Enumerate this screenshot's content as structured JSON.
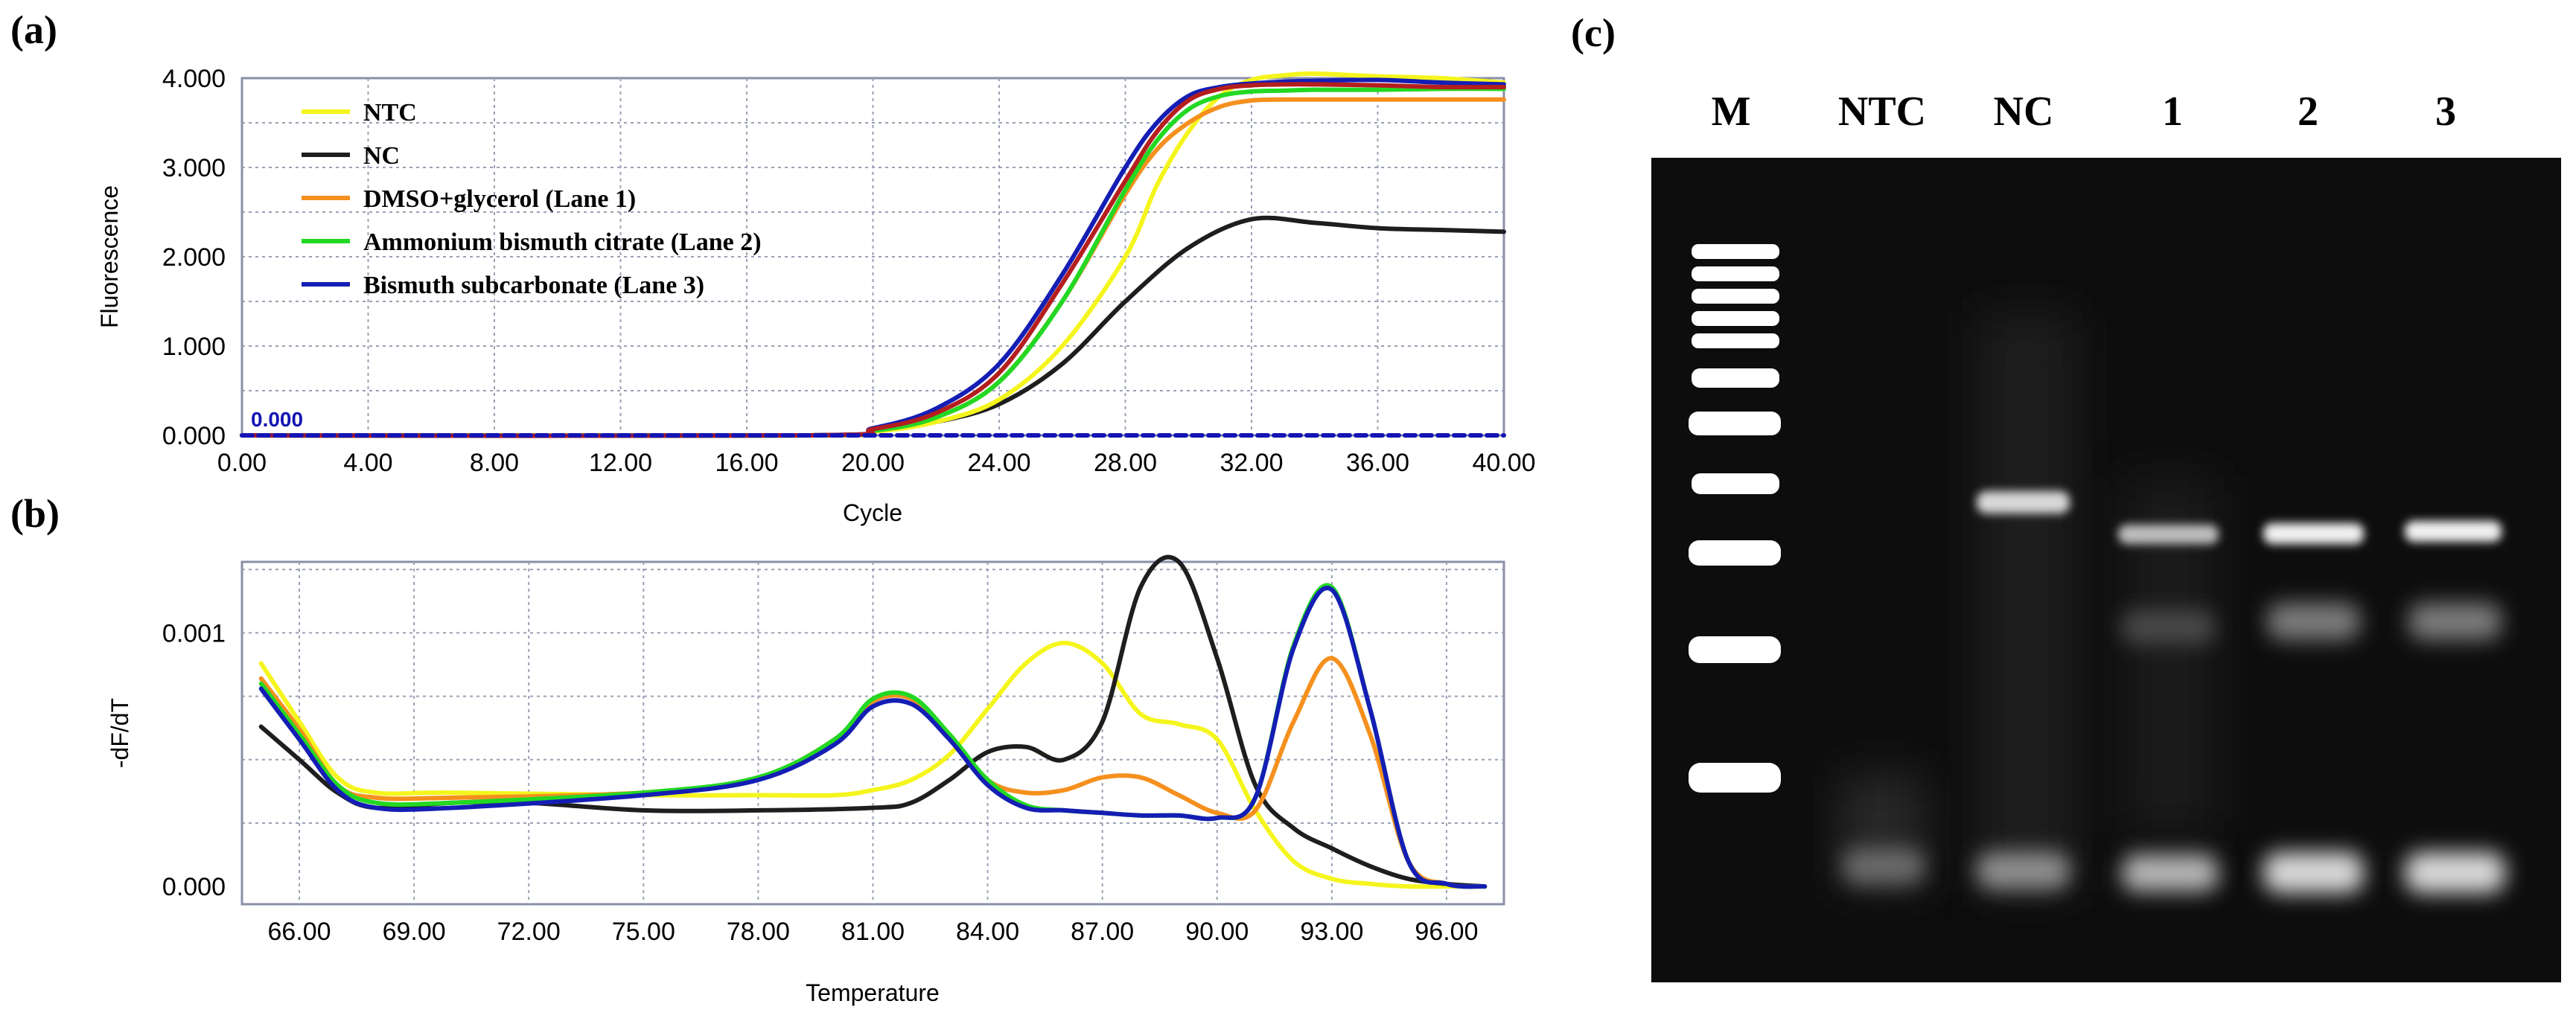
{
  "panel_labels": {
    "a": "(a)",
    "b": "(b)",
    "c": "(c)"
  },
  "colors": {
    "ntc": "#f5f51e",
    "nc": "#1e1e1e",
    "lane1": "#f5901e",
    "lane2": "#23d823",
    "lane3": "#141eb4",
    "lane_extra": "#b41e1e",
    "baseline": "#1414b4"
  },
  "chart_data": [
    {
      "id": "amplification",
      "type": "line",
      "title": "",
      "xlabel": "Cycle",
      "ylabel": "Fluorescence",
      "xlim": [
        0,
        40
      ],
      "ylim": [
        0,
        4
      ],
      "xticks": [
        "0.00",
        "4.00",
        "8.00",
        "12.00",
        "16.00",
        "20.00",
        "24.00",
        "28.00",
        "32.00",
        "36.00",
        "40.00"
      ],
      "yticks": [
        "0.000",
        "1.000",
        "2.000",
        "3.000",
        "4.000"
      ],
      "baseline_label": "0.000",
      "legend": [
        {
          "key": "ntc",
          "label": "NTC"
        },
        {
          "key": "nc",
          "label": "NC"
        },
        {
          "key": "lane1",
          "label": "DMSO+glycerol (Lane 1)"
        },
        {
          "key": "lane2",
          "label": "Ammonium bismuth citrate (Lane 2)"
        },
        {
          "key": "lane3",
          "label": "Bismuth subcarbonate (Lane 3)"
        }
      ],
      "series": [
        {
          "name": "NC",
          "key": "nc",
          "x": [
            0,
            18,
            20,
            22,
            24,
            26,
            28,
            30,
            32,
            34,
            36,
            38,
            40
          ],
          "y": [
            0,
            0,
            0.05,
            0.15,
            0.35,
            0.8,
            1.5,
            2.1,
            2.42,
            2.38,
            2.32,
            2.3,
            2.28
          ]
        },
        {
          "name": "NTC",
          "key": "ntc",
          "x": [
            0,
            18,
            20,
            22,
            24,
            26,
            28,
            29,
            30,
            31,
            32,
            33,
            34,
            36,
            38,
            40
          ],
          "y": [
            0,
            0,
            0.04,
            0.15,
            0.4,
            1.0,
            2.0,
            2.8,
            3.4,
            3.8,
            3.98,
            4.03,
            4.05,
            4.02,
            4.0,
            3.95
          ]
        },
        {
          "name": "DMSO+glycerol (Lane 1)",
          "key": "lane1",
          "x": [
            0,
            18,
            20,
            22,
            24,
            26,
            28,
            29,
            30,
            31,
            32,
            33,
            34,
            36,
            38,
            40
          ],
          "y": [
            0,
            0,
            0.05,
            0.2,
            0.6,
            1.5,
            2.7,
            3.2,
            3.5,
            3.68,
            3.75,
            3.76,
            3.76,
            3.76,
            3.76,
            3.76
          ]
        },
        {
          "name": "Ammonium bismuth citrate (Lane 2)",
          "key": "lane2",
          "x": [
            0,
            18,
            20,
            22,
            24,
            26,
            28,
            29,
            30,
            31,
            32,
            33,
            34,
            36,
            38,
            40
          ],
          "y": [
            0,
            0,
            0.05,
            0.2,
            0.6,
            1.5,
            2.75,
            3.3,
            3.65,
            3.8,
            3.85,
            3.86,
            3.87,
            3.87,
            3.88,
            3.88
          ]
        },
        {
          "name": "Bismuth subcarbonate (Lane 3)",
          "key": "lane3",
          "x": [
            0,
            18,
            20,
            22,
            24,
            26,
            28,
            29,
            30,
            31,
            32,
            33,
            34,
            36,
            38,
            40
          ],
          "y": [
            0,
            0,
            0.08,
            0.3,
            0.8,
            1.8,
            3.0,
            3.5,
            3.8,
            3.9,
            3.94,
            3.96,
            3.97,
            3.98,
            3.95,
            3.93
          ]
        },
        {
          "name": "Red curve",
          "key": "lane_extra",
          "x": [
            0,
            18,
            20,
            22,
            24,
            26,
            28,
            29,
            30,
            31,
            32,
            33,
            34,
            36,
            38,
            40
          ],
          "y": [
            0,
            0,
            0.07,
            0.25,
            0.7,
            1.7,
            2.85,
            3.4,
            3.75,
            3.88,
            3.92,
            3.93,
            3.93,
            3.92,
            3.9,
            3.9
          ]
        }
      ]
    },
    {
      "id": "melt",
      "type": "line",
      "title": "",
      "xlabel": "Temperature",
      "ylabel": "-dF/dT",
      "xlim": [
        64.5,
        97.5
      ],
      "ylim": [
        -7e-05,
        0.00128
      ],
      "xticks": [
        "66.00",
        "69.00",
        "72.00",
        "75.00",
        "78.00",
        "81.00",
        "84.00",
        "87.00",
        "90.00",
        "93.00",
        "96.00"
      ],
      "yticks": [
        "0.000",
        "0.001"
      ],
      "series": [
        {
          "name": "NTC",
          "key": "ntc",
          "x": [
            65,
            66,
            67,
            68,
            70,
            75,
            78,
            80,
            81,
            82,
            83,
            84,
            85,
            86,
            87,
            88,
            89,
            90,
            91,
            92,
            93,
            94,
            95,
            96,
            97
          ],
          "y": [
            0.00088,
            0.00065,
            0.00043,
            0.00037,
            0.00037,
            0.00036,
            0.00036,
            0.00036,
            0.00038,
            0.00042,
            0.00052,
            0.0007,
            0.00088,
            0.00096,
            0.00088,
            0.00068,
            0.00064,
            0.00058,
            0.0003,
            0.0001,
            3e-05,
            1e-05,
            0.0,
            0.0,
            0.0
          ]
        },
        {
          "name": "NC",
          "key": "nc",
          "x": [
            65,
            66,
            67,
            68,
            70,
            72,
            75,
            78,
            81,
            82,
            83,
            84,
            85,
            86,
            87,
            88,
            89,
            90,
            91,
            92,
            93,
            94,
            95,
            96,
            97
          ],
          "y": [
            0.00063,
            0.0005,
            0.00037,
            0.00031,
            0.00033,
            0.00033,
            0.0003,
            0.0003,
            0.00031,
            0.00033,
            0.00042,
            0.00053,
            0.00055,
            0.0005,
            0.00065,
            0.00118,
            0.00128,
            0.0009,
            0.0004,
            0.00023,
            0.00015,
            8e-05,
            3e-05,
            1e-05,
            0.0
          ]
        },
        {
          "name": "DMSO+glycerol (Lane 1)",
          "key": "lane1",
          "x": [
            65,
            66,
            67,
            68,
            70,
            75,
            78,
            80,
            81,
            82,
            83,
            84,
            85,
            86,
            87,
            88,
            89,
            90,
            91,
            92,
            93,
            94,
            95,
            96,
            97
          ],
          "y": [
            0.00082,
            0.00062,
            0.0004,
            0.00035,
            0.00035,
            0.00037,
            0.00043,
            0.00058,
            0.00073,
            0.00074,
            0.0006,
            0.00042,
            0.00037,
            0.00038,
            0.00043,
            0.00043,
            0.00036,
            0.00029,
            0.0003,
            0.00065,
            0.0009,
            0.0006,
            0.0001,
            1e-05,
            0.0
          ]
        },
        {
          "name": "Ammonium bismuth citrate (Lane 2)",
          "key": "lane2",
          "x": [
            65,
            66,
            67,
            68,
            70,
            75,
            78,
            80,
            81,
            82,
            83,
            84,
            85,
            86,
            87,
            88,
            89,
            90,
            91,
            92,
            93,
            94,
            95,
            96,
            97
          ],
          "y": [
            0.0008,
            0.0006,
            0.0004,
            0.00033,
            0.00033,
            0.00037,
            0.00043,
            0.00058,
            0.00074,
            0.00075,
            0.0006,
            0.00042,
            0.00032,
            0.0003,
            0.00029,
            0.00028,
            0.00028,
            0.00027,
            0.00035,
            0.00095,
            0.00118,
            0.0007,
            0.0001,
            1e-05,
            0.0
          ]
        },
        {
          "name": "Bismuth subcarbonate (Lane 3)",
          "key": "lane3",
          "x": [
            65,
            66,
            67,
            68,
            70,
            75,
            78,
            80,
            81,
            82,
            83,
            84,
            85,
            86,
            87,
            88,
            89,
            90,
            91,
            92,
            93,
            94,
            95,
            96,
            97
          ],
          "y": [
            0.00078,
            0.00058,
            0.00038,
            0.00031,
            0.00031,
            0.00036,
            0.00042,
            0.00056,
            0.00071,
            0.00072,
            0.00058,
            0.0004,
            0.00031,
            0.0003,
            0.00029,
            0.00028,
            0.00028,
            0.00027,
            0.00035,
            0.00094,
            0.00117,
            0.0007,
            0.0001,
            1e-05,
            0.0
          ]
        }
      ]
    }
  ],
  "gel": {
    "lane_labels": [
      "M",
      "NTC",
      "NC",
      "1",
      "2",
      "3"
    ]
  }
}
